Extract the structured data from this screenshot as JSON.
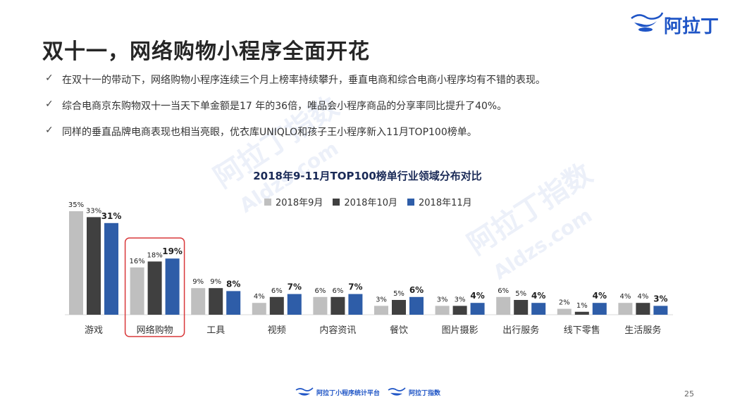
{
  "brand": {
    "logo_text": "阿拉丁"
  },
  "title": "双十一，网络购物小程序全面开花",
  "bullets": [
    "在双十一的带动下，网络购物小程序连续三个月上榜率持续攀升，垂直电商和综合电商小程序均有不错的表现。",
    "综合电商京东购物双十一当天下单金额是17 年的36倍，唯品会小程序商品的分享率同比提升了40%。",
    "同样的垂直品牌电商表现也相当亮眼，优衣库UNIQLO和孩子王小程序新入11月TOP100榜单。"
  ],
  "watermarks": [
    "阿拉丁指数",
    "Aldzs.com",
    "阿拉丁指数",
    "Aldzs.com"
  ],
  "footer": {
    "logo1": "阿拉丁小程序统计平台",
    "logo2": "阿拉丁指数",
    "page": "25"
  },
  "colors": {
    "sep": "#bfbfbf",
    "oct": "#404040",
    "nov": "#2e5da8",
    "highlight": "#d9383a",
    "title": "#1a2a57",
    "brand": "#1f55c6"
  },
  "chart_data": {
    "type": "bar",
    "title": "2018年9-11月TOP100榜单行业领域分布对比",
    "categories": [
      "游戏",
      "网络购物",
      "工具",
      "视频",
      "内容资讯",
      "餐饮",
      "图片摄影",
      "出行服务",
      "线下零售",
      "生活服务"
    ],
    "series": [
      {
        "name": "2018年9月",
        "values": [
          35,
          16,
          9,
          4,
          6,
          3,
          3,
          6,
          2,
          4
        ],
        "labels": [
          "35%",
          "16%",
          "9%",
          "4%",
          "6%",
          "3%",
          "3%",
          "6%",
          "2%",
          "4%"
        ]
      },
      {
        "name": "2018年10月",
        "values": [
          33,
          18,
          9,
          6,
          6,
          5,
          3,
          5,
          1,
          4
        ],
        "labels": [
          "33%",
          "18%",
          "9%",
          "6%",
          "6%",
          "5%",
          "3%",
          "5%",
          "1%",
          "4%"
        ]
      },
      {
        "name": "2018年11月",
        "values": [
          31,
          19,
          8,
          7,
          7,
          6,
          4,
          4,
          4,
          3
        ],
        "labels": [
          "31%",
          "19%",
          "8%",
          "7%",
          "7%",
          "6%",
          "4%",
          "4%",
          "4%",
          "3%"
        ]
      }
    ],
    "ylim": [
      0,
      35
    ],
    "highlight_category": "网络购物",
    "legend_position": "top"
  }
}
